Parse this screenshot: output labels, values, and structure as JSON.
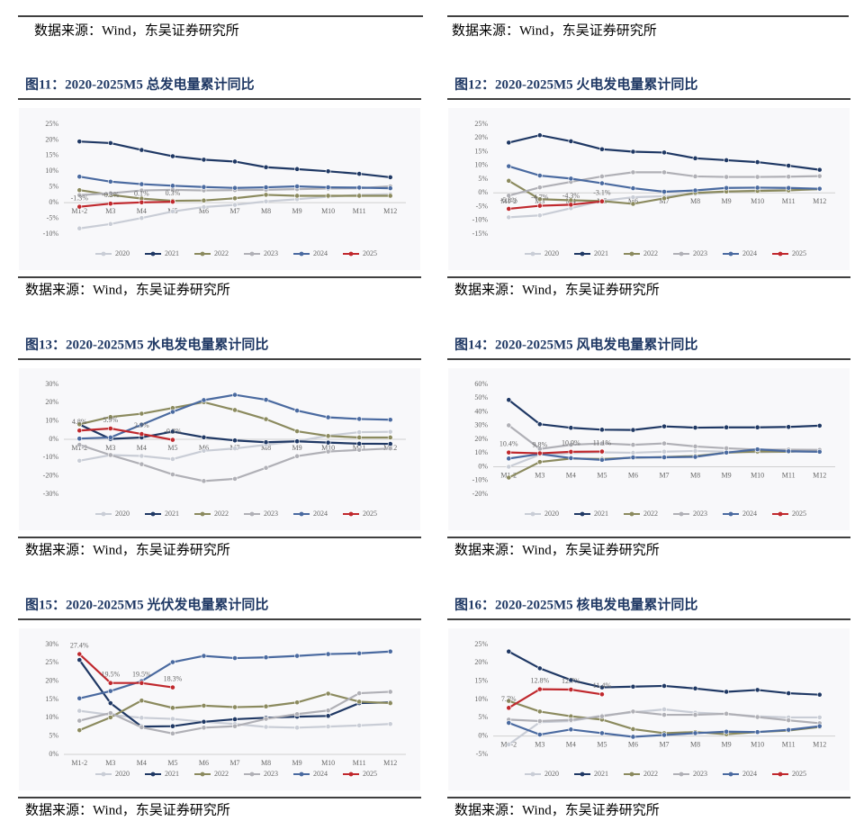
{
  "top_sources": [
    "数据来源：Wind，东吴证券研究所",
    "数据来源：Wind，东吴证券研究所"
  ],
  "chart_data": [
    {
      "type": "line",
      "title": "图11：2020-2025M5 总发电量累计同比",
      "source": "数据来源：Wind，东吴证券研究所",
      "categories": [
        "M1-2",
        "M3",
        "M4",
        "M5",
        "M6",
        "M7",
        "M8",
        "M9",
        "M10",
        "M11",
        "M12"
      ],
      "ylim": [
        -10,
        25
      ],
      "yticks": [
        {
          "value": -10,
          "label": "-10%"
        },
        {
          "value": -5,
          "label": "-5%"
        },
        {
          "value": 0,
          "label": "0%"
        },
        {
          "value": 5,
          "label": "5%"
        },
        {
          "value": 10,
          "label": "10%"
        },
        {
          "value": 15,
          "label": "15%"
        },
        {
          "value": 20,
          "label": "20%"
        },
        {
          "value": 25,
          "label": "25%"
        }
      ],
      "grid": false,
      "legend": "bottom",
      "series": [
        {
          "name": "2020",
          "color": "#c9cdd6",
          "values": [
            -8.2,
            -6.8,
            -4.9,
            -2.8,
            -1.4,
            -0.7,
            0.4,
            1.1,
            1.9,
            2.5,
            2.7
          ]
        },
        {
          "name": "2021",
          "color": "#1f3864",
          "values": [
            19.5,
            19.0,
            16.8,
            14.8,
            13.7,
            13.1,
            11.3,
            10.7,
            10.0,
            9.2,
            8.1
          ]
        },
        {
          "name": "2022",
          "color": "#8b8a5e",
          "values": [
            4.0,
            2.5,
            1.3,
            0.6,
            0.7,
            1.4,
            2.5,
            2.2,
            2.2,
            2.2,
            2.2
          ]
        },
        {
          "name": "2023",
          "color": "#b0b0b6",
          "values": [
            2.4,
            3.0,
            3.9,
            4.1,
            3.9,
            4.0,
            4.1,
            4.3,
            4.5,
            4.6,
            5.2
          ]
        },
        {
          "name": "2024",
          "color": "#4a6aa0",
          "values": [
            8.3,
            6.7,
            5.9,
            5.4,
            5.0,
            4.7,
            4.9,
            5.2,
            4.9,
            4.8,
            4.6
          ]
        },
        {
          "name": "2025",
          "color": "#c0282d",
          "values": [
            -1.3,
            -0.3,
            0.1,
            0.3,
            null,
            null,
            null,
            null,
            null,
            null,
            null
          ],
          "value_labels": [
            "-1.3%",
            "-0.3%",
            "0.1%",
            "0.3%",
            null,
            null,
            null,
            null,
            null,
            null,
            null
          ]
        }
      ]
    },
    {
      "type": "line",
      "title": "图12：2020-2025M5 火电发电量累计同比",
      "source": "数据来源：Wind，东吴证券研究所",
      "categories": [
        "M1-2",
        "M3",
        "M4",
        "M5",
        "M6",
        "M7",
        "M8",
        "M9",
        "M10",
        "M11",
        "M12"
      ],
      "ylim": [
        -15,
        25
      ],
      "yticks": [
        {
          "value": -15,
          "label": "-15%"
        },
        {
          "value": -10,
          "label": "-10%"
        },
        {
          "value": -5,
          "label": "-5%"
        },
        {
          "value": 0,
          "label": "0%"
        },
        {
          "value": 5,
          "label": "5%"
        },
        {
          "value": 10,
          "label": "10%"
        },
        {
          "value": 15,
          "label": "15%"
        },
        {
          "value": 20,
          "label": "20%"
        },
        {
          "value": 25,
          "label": "25%"
        }
      ],
      "grid": false,
      "legend": "bottom",
      "series": [
        {
          "name": "2020",
          "color": "#c9cdd6",
          "values": [
            -8.9,
            -8.2,
            -5.6,
            -2.9,
            -1.6,
            -1.2,
            -0.4,
            0.3,
            0.9,
            1.2,
            1.2
          ]
        },
        {
          "name": "2021",
          "color": "#1f3864",
          "values": [
            18.3,
            21.0,
            18.8,
            15.9,
            15.0,
            14.7,
            12.6,
            11.9,
            11.2,
            9.9,
            8.4
          ]
        },
        {
          "name": "2022",
          "color": "#8b8a5e",
          "values": [
            4.4,
            -2.3,
            -2.7,
            -3.0,
            -4.0,
            -2.0,
            0.0,
            0.5,
            0.7,
            0.9,
            1.4
          ]
        },
        {
          "name": "2023",
          "color": "#b0b0b6",
          "values": [
            -1.0,
            2.0,
            4.0,
            6.0,
            7.5,
            7.5,
            6.0,
            5.8,
            5.8,
            5.9,
            6.1
          ]
        },
        {
          "name": "2024",
          "color": "#4a6aa0",
          "values": [
            9.7,
            6.3,
            5.2,
            3.5,
            1.7,
            0.4,
            0.9,
            1.8,
            1.9,
            1.8,
            1.5
          ]
        },
        {
          "name": "2025",
          "color": "#c0282d",
          "values": [
            -5.8,
            -4.7,
            -4.3,
            -3.1,
            null,
            null,
            null,
            null,
            null,
            null,
            null
          ],
          "value_labels": [
            "-5.8%",
            "-4.7%",
            "-4.3%",
            "-3.1%",
            null,
            null,
            null,
            null,
            null,
            null,
            null
          ]
        }
      ]
    },
    {
      "type": "line",
      "title": "图13：2020-2025M5 水电发电量累计同比",
      "source": "数据来源：Wind，东吴证券研究所",
      "categories": [
        "M1-2",
        "M3",
        "M4",
        "M5",
        "M6",
        "M7",
        "M8",
        "M9",
        "M10",
        "M11",
        "M12"
      ],
      "ylim": [
        -30,
        30
      ],
      "yticks": [
        {
          "value": -30,
          "label": "-30%"
        },
        {
          "value": -20,
          "label": "-20%"
        },
        {
          "value": -10,
          "label": "-10%"
        },
        {
          "value": 0,
          "label": "0%"
        },
        {
          "value": 10,
          "label": "10%"
        },
        {
          "value": 20,
          "label": "20%"
        },
        {
          "value": 30,
          "label": "30%"
        }
      ],
      "grid": false,
      "legend": "bottom",
      "series": [
        {
          "name": "2020",
          "color": "#c9cdd6",
          "values": [
            -11.7,
            -8.6,
            -9.1,
            -10.8,
            -6.3,
            -5.0,
            -3.0,
            -1.0,
            2.0,
            3.9,
            4.1
          ]
        },
        {
          "name": "2021",
          "color": "#1f3864",
          "values": [
            8.1,
            0.2,
            1.0,
            4.2,
            1.1,
            -0.6,
            -1.6,
            -1.1,
            -1.8,
            -2.4,
            -2.5
          ]
        },
        {
          "name": "2022",
          "color": "#8b8a5e",
          "values": [
            8.2,
            12.2,
            14.0,
            17.1,
            20.3,
            16.0,
            11.0,
            4.4,
            1.8,
            1.0,
            1.0
          ]
        },
        {
          "name": "2023",
          "color": "#b0b0b6",
          "values": [
            -3.0,
            -8.6,
            -13.6,
            -19.2,
            -22.8,
            -21.6,
            -15.6,
            -9.2,
            -6.7,
            -5.8,
            -5.0
          ]
        },
        {
          "name": "2024",
          "color": "#4a6aa0",
          "values": [
            0.4,
            1.0,
            8.0,
            15.0,
            21.4,
            24.3,
            21.6,
            15.7,
            12.0,
            11.1,
            10.7
          ]
        },
        {
          "name": "2025",
          "color": "#c0282d",
          "values": [
            4.8,
            5.9,
            2.9,
            -0.3,
            null,
            null,
            null,
            null,
            null,
            null,
            null
          ],
          "value_labels": [
            "4.8%",
            "5.9%",
            "2.9%",
            "-0.3%",
            null,
            null,
            null,
            null,
            null,
            null,
            null
          ]
        }
      ]
    },
    {
      "type": "line",
      "title": "图14：2020-2025M5 风电发电量累计同比",
      "source": "数据来源：Wind，东吴证券研究所",
      "categories": [
        "M1-2",
        "M3",
        "M4",
        "M5",
        "M6",
        "M7",
        "M8",
        "M9",
        "M10",
        "M11",
        "M12"
      ],
      "ylim": [
        -20,
        60
      ],
      "yticks": [
        {
          "value": -20,
          "label": "-20%"
        },
        {
          "value": -10,
          "label": "-10%"
        },
        {
          "value": 0,
          "label": "0%"
        },
        {
          "value": 10,
          "label": "10%"
        },
        {
          "value": 20,
          "label": "20%"
        },
        {
          "value": 30,
          "label": "30%"
        },
        {
          "value": 40,
          "label": "40%"
        },
        {
          "value": 50,
          "label": "50%"
        },
        {
          "value": 60,
          "label": "60%"
        }
      ],
      "grid": false,
      "legend": "bottom",
      "series": [
        {
          "name": "2020",
          "color": "#c9cdd6",
          "values": [
            0.0,
            8.8,
            10.0,
            10.5,
            10.2,
            11.0,
            11.5,
            11.0,
            10.5,
            11.0,
            11.0
          ]
        },
        {
          "name": "2021",
          "color": "#1f3864",
          "values": [
            48.7,
            31.0,
            28.4,
            27.0,
            26.8,
            29.4,
            28.5,
            28.7,
            28.7,
            29.0,
            29.9
          ]
        },
        {
          "name": "2022",
          "color": "#8b8a5e",
          "values": [
            -7.9,
            3.5,
            6.0,
            5.7,
            6.6,
            7.1,
            7.8,
            10.2,
            11.1,
            11.0,
            12.0
          ]
        },
        {
          "name": "2023",
          "color": "#b0b0b6",
          "values": [
            30.2,
            13.0,
            16.0,
            17.0,
            16.0,
            17.0,
            14.8,
            13.5,
            12.5,
            12.5,
            12.3
          ]
        },
        {
          "name": "2024",
          "color": "#4a6aa0",
          "values": [
            6.0,
            9.3,
            6.3,
            5.0,
            6.8,
            6.9,
            7.2,
            10.3,
            12.7,
            11.3,
            10.9
          ]
        },
        {
          "name": "2025",
          "color": "#c0282d",
          "values": [
            10.4,
            9.8,
            10.9,
            11.1,
            null,
            null,
            null,
            null,
            null,
            null,
            null
          ],
          "value_labels": [
            "10.4%",
            "9.8%",
            "10.9%",
            "11.1%",
            null,
            null,
            null,
            null,
            null,
            null,
            null
          ]
        }
      ]
    },
    {
      "type": "line",
      "title": "图15：2020-2025M5 光伏发电量累计同比",
      "source": "数据来源：Wind，东吴证券研究所",
      "categories": [
        "M1-2",
        "M3",
        "M4",
        "M5",
        "M6",
        "M7",
        "M8",
        "M9",
        "M10",
        "M11",
        "M12"
      ],
      "ylim": [
        0,
        30
      ],
      "yticks": [
        {
          "value": 0,
          "label": "0%"
        },
        {
          "value": 5,
          "label": "5%"
        },
        {
          "value": 10,
          "label": "10%"
        },
        {
          "value": 15,
          "label": "15%"
        },
        {
          "value": 20,
          "label": "20%"
        },
        {
          "value": 25,
          "label": "25%"
        },
        {
          "value": 30,
          "label": "30%"
        }
      ],
      "grid": false,
      "legend": "bottom",
      "series": [
        {
          "name": "2020",
          "color": "#c9cdd6",
          "values": [
            11.9,
            10.8,
            10.0,
            9.7,
            8.9,
            8.3,
            7.5,
            7.3,
            7.6,
            7.9,
            8.3
          ]
        },
        {
          "name": "2021",
          "color": "#1f3864",
          "values": [
            25.8,
            14.0,
            7.6,
            7.7,
            8.9,
            9.6,
            10.0,
            10.3,
            10.5,
            14.0,
            14.2
          ]
        },
        {
          "name": "2022",
          "color": "#8b8a5e",
          "values": [
            6.6,
            10.1,
            14.7,
            12.7,
            13.3,
            12.9,
            13.1,
            14.2,
            16.6,
            14.4,
            14.0
          ]
        },
        {
          "name": "2023",
          "color": "#b0b0b6",
          "values": [
            9.2,
            11.3,
            7.4,
            5.7,
            7.3,
            7.7,
            9.7,
            11.0,
            12.0,
            16.7,
            17.1
          ]
        },
        {
          "name": "2024",
          "color": "#4a6aa0",
          "values": [
            15.3,
            17.3,
            20.0,
            25.2,
            26.9,
            26.3,
            26.5,
            26.9,
            27.4,
            27.6,
            28.1
          ]
        },
        {
          "name": "2025",
          "color": "#c0282d",
          "values": [
            27.4,
            19.5,
            19.5,
            18.3,
            null,
            null,
            null,
            null,
            null,
            null,
            null
          ],
          "value_labels": [
            "27.4%",
            "19.5%",
            "19.5%",
            "18.3%",
            null,
            null,
            null,
            null,
            null,
            null,
            null
          ]
        }
      ]
    },
    {
      "type": "line",
      "title": "图16：2020-2025M5 核电发电量累计同比",
      "source": "数据来源：Wind，东吴证券研究所",
      "categories": [
        "M1-2",
        "M3",
        "M4",
        "M5",
        "M6",
        "M7",
        "M8",
        "M9",
        "M10",
        "M11",
        "M12"
      ],
      "ylim": [
        -5,
        25
      ],
      "yticks": [
        {
          "value": -5,
          "label": "-5%"
        },
        {
          "value": 0,
          "label": "0%"
        },
        {
          "value": 5,
          "label": "5%"
        },
        {
          "value": 10,
          "label": "10%"
        },
        {
          "value": 15,
          "label": "15%"
        },
        {
          "value": 20,
          "label": "20%"
        },
        {
          "value": 25,
          "label": "25%"
        }
      ],
      "grid": false,
      "legend": "bottom",
      "series": [
        {
          "name": "2020",
          "color": "#c9cdd6",
          "values": [
            -2.3,
            3.8,
            4.1,
            5.6,
            6.5,
            7.3,
            6.4,
            6.0,
            5.4,
            5.1,
            5.1
          ]
        },
        {
          "name": "2021",
          "color": "#1f3864",
          "values": [
            23.1,
            18.5,
            15.3,
            13.3,
            13.5,
            13.7,
            13.0,
            12.1,
            12.6,
            11.7,
            11.3
          ]
        },
        {
          "name": "2022",
          "color": "#8b8a5e",
          "values": [
            9.6,
            6.7,
            5.4,
            4.5,
            1.9,
            0.8,
            1.1,
            0.5,
            1.1,
            1.5,
            2.5
          ]
        },
        {
          "name": "2023",
          "color": "#b0b0b6",
          "values": [
            4.5,
            4.1,
            4.4,
            5.4,
            6.7,
            5.8,
            5.8,
            6.1,
            5.2,
            4.3,
            3.5
          ]
        },
        {
          "name": "2024",
          "color": "#4a6aa0",
          "values": [
            3.6,
            0.4,
            1.8,
            0.8,
            -0.2,
            0.3,
            0.8,
            1.2,
            1.1,
            1.7,
            2.7
          ]
        },
        {
          "name": "2025",
          "color": "#c0282d",
          "values": [
            7.7,
            12.8,
            12.7,
            11.4,
            null,
            null,
            null,
            null,
            null,
            null,
            null
          ],
          "value_labels": [
            "7.7%",
            "12.8%",
            "12.7%",
            "11.4%",
            null,
            null,
            null,
            null,
            null,
            null,
            null
          ]
        }
      ]
    }
  ]
}
